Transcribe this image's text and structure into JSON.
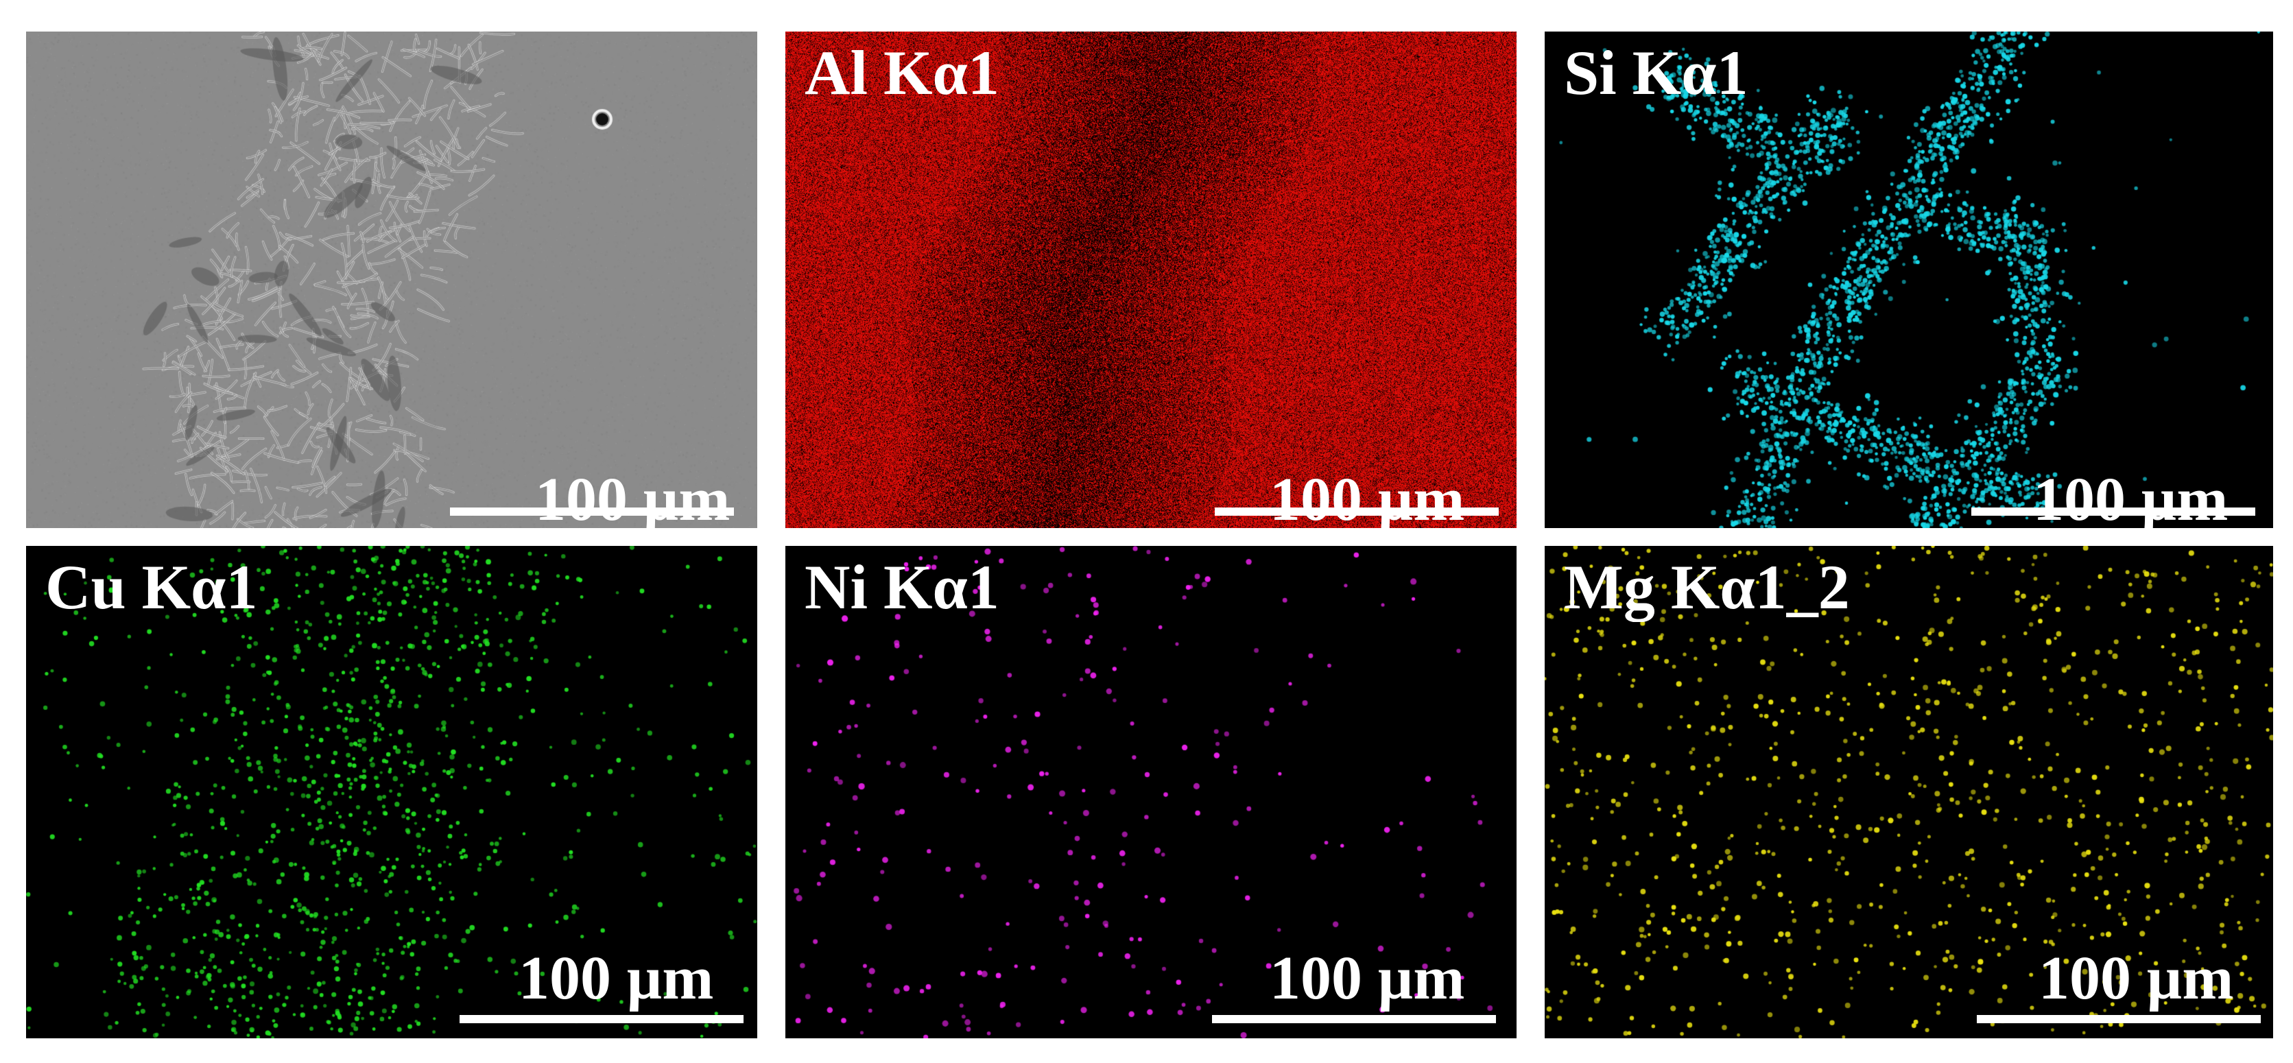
{
  "panels": [
    {
      "id": "sem",
      "label": "",
      "scale_text": "100 µm",
      "kind": "sem",
      "color": "#8a8a8a"
    },
    {
      "id": "al",
      "label": "Al Kα1",
      "scale_text": "100 µm",
      "kind": "map",
      "color": "#e01010"
    },
    {
      "id": "si",
      "label": "Si Kα1",
      "scale_text": "100 µm",
      "kind": "map",
      "color": "#18d8e8"
    },
    {
      "id": "cu",
      "label": "Cu Kα1",
      "scale_text": "100 µm",
      "kind": "map",
      "color": "#22e022"
    },
    {
      "id": "ni",
      "label": "Ni Kα1",
      "scale_text": "100 µm",
      "kind": "map",
      "color": "#ee22ee"
    },
    {
      "id": "mg",
      "label": "Mg Kα1_2",
      "scale_text": "100 µm",
      "kind": "map",
      "color": "#e8e010"
    }
  ]
}
